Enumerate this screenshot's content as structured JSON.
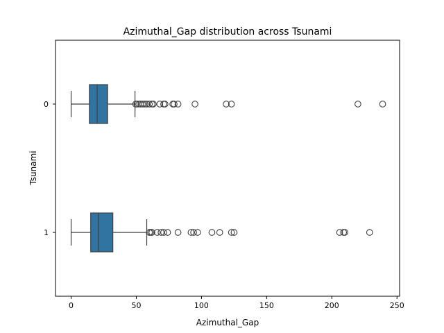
{
  "chart_data": {
    "type": "boxplot",
    "orientation": "horizontal",
    "title": "Azimuthal_Gap distribution across Tsunami",
    "xlabel": "Azimuthal_Gap",
    "ylabel": "Tsunami",
    "xlim": [
      -12,
      252
    ],
    "x_ticks": [
      0,
      50,
      100,
      150,
      200,
      250
    ],
    "categories": [
      "0",
      "1"
    ],
    "grid": false,
    "box_color": "#3274a1",
    "boxes": [
      {
        "category": "0",
        "whisker_low": 0,
        "q1": 14,
        "median": 20,
        "q3": 28,
        "whisker_high": 49,
        "outliers": [
          49.5,
          50.5,
          52,
          53.5,
          55,
          56.5,
          58,
          60,
          62,
          63,
          68,
          71,
          72,
          78,
          79,
          82,
          95,
          119,
          123,
          220,
          239
        ]
      },
      {
        "category": "1",
        "whisker_low": 0,
        "q1": 15,
        "median": 21,
        "q3": 32,
        "whisker_high": 58,
        "outliers": [
          60,
          61,
          62,
          66,
          69,
          71,
          74,
          82,
          92,
          94,
          97,
          108,
          114,
          123,
          125,
          206,
          209,
          210,
          229
        ]
      }
    ]
  }
}
